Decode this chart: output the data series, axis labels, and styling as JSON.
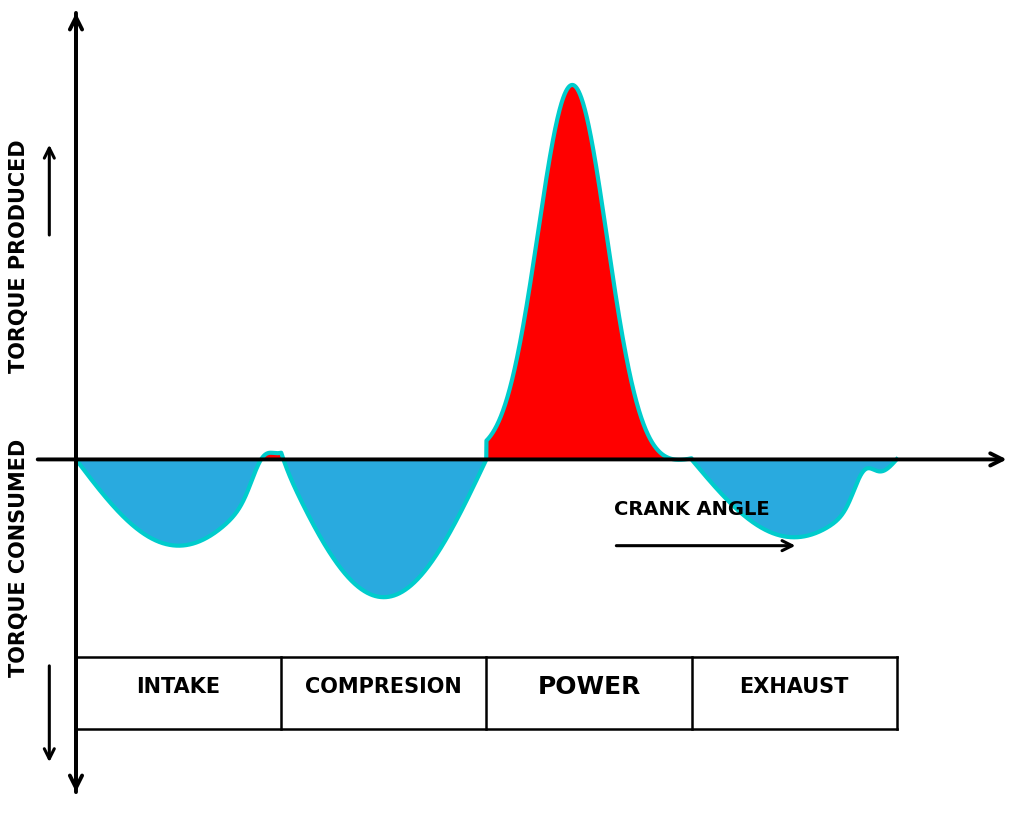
{
  "background_color": "#ffffff",
  "curve_color_outline": "#00cccc",
  "fill_positive_color": "#ff0000",
  "fill_negative_color": "#29aadf",
  "stroke_width": 3.0,
  "torque_produced_label": "TORQUE PRODUCED",
  "torque_consumed_label": "TORQUE CONSUMED",
  "crank_angle_label": "CRANK ANGLE",
  "stroke_labels": [
    "INTAKE",
    "COMPRESION",
    "POWER",
    "EXHAUST"
  ],
  "label_fontsize": 16,
  "axis_label_fontsize": 15
}
